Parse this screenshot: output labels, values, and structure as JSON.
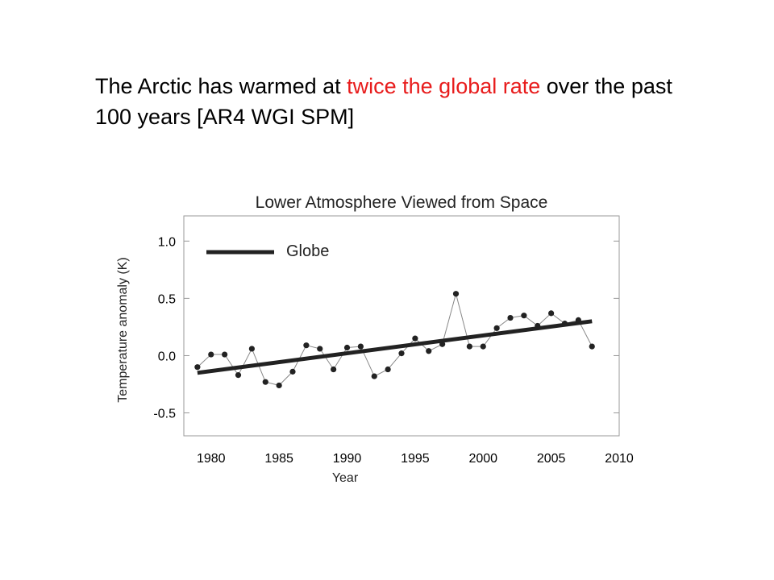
{
  "heading": {
    "part1": "The Arctic has warmed at ",
    "highlight": "twice the global  rate",
    "part2": " over the past 100 years [AR4 WGI SPM]",
    "highlight_color": "#e81c1c"
  },
  "chart_data": {
    "type": "line",
    "title": "Lower Atmosphere Viewed from Space",
    "xlabel": "Year",
    "ylabel": "Temperature anomaly (K)",
    "xlim": [
      1978,
      2010
    ],
    "ylim": [
      -0.7,
      1.22
    ],
    "x_ticks": [
      1980,
      1985,
      1990,
      1995,
      2000,
      2005,
      2010
    ],
    "y_ticks": [
      {
        "value": 1.0,
        "label": "1.0"
      },
      {
        "value": 0.5,
        "label": "0.5"
      },
      {
        "value": 0.0,
        "label": "0.0"
      },
      {
        "value": -0.5,
        "label": "-0.5"
      }
    ],
    "grid": false,
    "legend": {
      "placement": "top-left",
      "entries": [
        "Globe"
      ]
    },
    "series": [
      {
        "kind": "points",
        "color": "#222222",
        "x": [
          1979,
          1980,
          1981,
          1982,
          1983,
          1984,
          1985,
          1986,
          1987,
          1988,
          1989,
          1990,
          1991,
          1992,
          1993,
          1994,
          1995,
          1996,
          1997,
          1998,
          1999,
          2000,
          2001,
          2002,
          2003,
          2004,
          2005,
          2006,
          2007,
          2008
        ],
        "y": [
          -0.1,
          0.01,
          0.01,
          -0.17,
          0.06,
          -0.23,
          -0.26,
          -0.14,
          0.09,
          0.06,
          -0.12,
          0.07,
          0.08,
          -0.18,
          -0.12,
          0.02,
          0.15,
          0.04,
          0.1,
          0.54,
          0.08,
          0.08,
          0.24,
          0.33,
          0.35,
          0.26,
          0.37,
          0.28,
          0.31,
          0.08
        ]
      },
      {
        "name": "Globe",
        "kind": "trend",
        "color": "#222222",
        "x": [
          1979,
          2008
        ],
        "y": [
          -0.15,
          0.3
        ]
      }
    ]
  }
}
